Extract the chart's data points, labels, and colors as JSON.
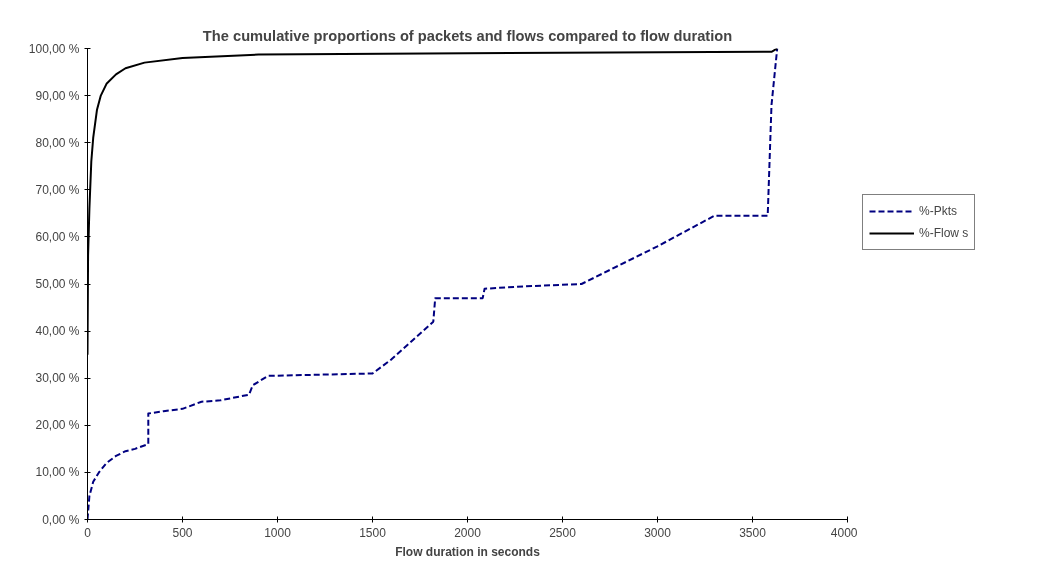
{
  "chart_data": {
    "type": "line",
    "title": "The cumulative proportions of packets and flows compared to flow duration",
    "xlabel": "Flow duration in seconds",
    "xlim": [
      0,
      4000
    ],
    "xticks": [
      0,
      500,
      1000,
      1500,
      2000,
      2500,
      3000,
      3500,
      4000
    ],
    "ylim": [
      0,
      100
    ],
    "yticks": [
      {
        "value": 0,
        "label": "0,00 %"
      },
      {
        "value": 10,
        "label": "10,00 %"
      },
      {
        "value": 20,
        "label": "20,00 %"
      },
      {
        "value": 30,
        "label": "30,00 %"
      },
      {
        "value": 40,
        "label": "40,00 %"
      },
      {
        "value": 50,
        "label": "50,00 %"
      },
      {
        "value": 60,
        "label": "60,00 %"
      },
      {
        "value": 70,
        "label": "70,00 %"
      },
      {
        "value": 80,
        "label": "80,00 %"
      },
      {
        "value": 90,
        "label": "90,00 %"
      },
      {
        "value": 100,
        "label": "100,00 %"
      }
    ],
    "grid": false,
    "legend": "right",
    "marker": "none",
    "series": [
      {
        "name": "%-Pkts",
        "color": "#000080",
        "line_style": "dashed",
        "x": [
          0,
          10,
          30,
          60,
          100,
          150,
          200,
          250,
          320,
          320,
          400,
          500,
          600,
          700,
          850,
          870,
          950,
          1500,
          1600,
          1820,
          1830,
          2080,
          2090,
          2300,
          2600,
          2800,
          3000,
          3300,
          3580,
          3600,
          3630
        ],
        "values": [
          0,
          5,
          8,
          10,
          12,
          13.5,
          14.5,
          15,
          16,
          22.5,
          23,
          23.5,
          25,
          25.3,
          26.5,
          28.5,
          30.5,
          31,
          34,
          42,
          47,
          47,
          49,
          49.5,
          50,
          54,
          58,
          64.5,
          64.5,
          88,
          100
        ]
      },
      {
        "name": "%-Flow s",
        "color": "#000000",
        "line_style": "solid",
        "x": [
          0,
          3,
          10,
          20,
          30,
          50,
          70,
          100,
          150,
          200,
          300,
          500,
          900,
          2000,
          3600,
          3630
        ],
        "values": [
          35,
          56,
          66,
          76,
          81,
          87,
          90,
          92.5,
          94.5,
          95.8,
          97,
          98,
          98.7,
          99,
          99.3,
          100
        ]
      }
    ]
  }
}
